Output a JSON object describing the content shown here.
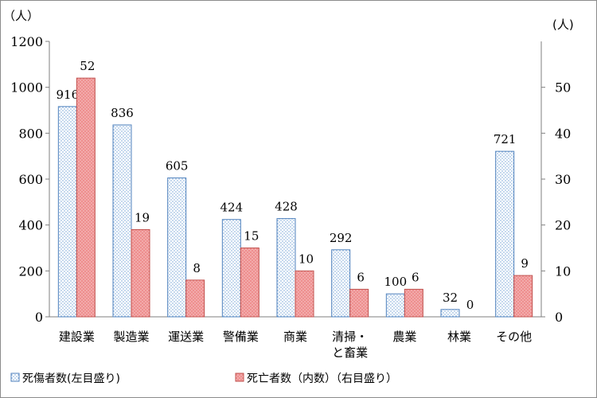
{
  "chart_data": {
    "type": "bar",
    "categories": [
      "建設業",
      "製造業",
      "運送業",
      "警備業",
      "商業",
      "清掃・\nと畜業",
      "農業",
      "林業",
      "その他"
    ],
    "series": [
      {
        "name": "死傷者数(左目盛り)",
        "axis": "left",
        "values": [
          916,
          836,
          605,
          424,
          428,
          292,
          100,
          32,
          721
        ],
        "color": "#dbe8f7",
        "border": "#4f81bd"
      },
      {
        "name": "死亡者数（内数）（右目盛り）",
        "axis": "right",
        "values": [
          52,
          19,
          8,
          15,
          10,
          6,
          6,
          0,
          9
        ],
        "color": "#f2a6a6",
        "border": "#c0504d"
      }
    ],
    "left_axis": {
      "unit": "（人）",
      "ylim": [
        0,
        1200
      ],
      "ticks": [
        0,
        200,
        400,
        600,
        800,
        1000,
        1200
      ]
    },
    "right_axis": {
      "unit": "(人)",
      "ylim": [
        0,
        60
      ],
      "ticks": [
        0,
        10,
        20,
        30,
        40,
        50
      ]
    },
    "legend_position": "bottom-left",
    "grid": false
  }
}
